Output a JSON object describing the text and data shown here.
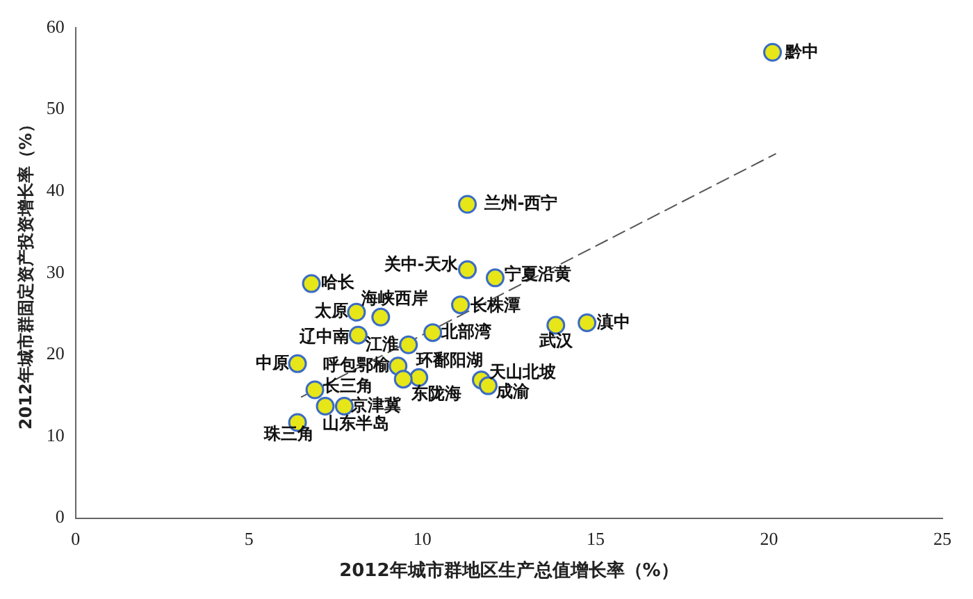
{
  "chart_data": {
    "type": "scatter",
    "xlabel": "2012年城市群地区生产总值增长率（%）",
    "ylabel": "2012年城市群固定资产投资增长率（%）",
    "xlim": [
      0,
      25
    ],
    "xticks": [
      0,
      5,
      10,
      15,
      20,
      25
    ],
    "ylim": [
      0,
      60
    ],
    "yticks": [
      0,
      10,
      20,
      30,
      40,
      50,
      60
    ],
    "grid": false,
    "legend": false,
    "marker": "circle",
    "series": [
      {
        "type": "scatter",
        "color": "#e6e619",
        "x": [
          20.1,
          11.3,
          11.3,
          12.1,
          6.8,
          11.1,
          8.1,
          8.8,
          10.3,
          13.85,
          14.75,
          8.15,
          9.6,
          6.4,
          9.3,
          9.9,
          9.45,
          11.7,
          11.9,
          6.9,
          7.2,
          7.75,
          6.4
        ],
        "values": [
          57.0,
          38.4,
          30.4,
          29.4,
          28.7,
          26.1,
          25.2,
          24.6,
          22.7,
          23.6,
          23.9,
          22.4,
          21.2,
          18.9,
          18.6,
          17.2,
          17.0,
          16.9,
          16.2,
          15.7,
          13.7,
          13.7,
          11.7
        ]
      },
      {
        "type": "line",
        "color": "#555555",
        "line_style": "dashed",
        "marker": "none",
        "x": [
          6.5,
          20.2
        ],
        "values": [
          14.8,
          44.6
        ]
      }
    ],
    "annotations": [
      {
        "text": "黔中",
        "x": 20.1,
        "y": 57.0
      },
      {
        "text": "兰州-西宁",
        "x": 11.3,
        "y": 38.4
      },
      {
        "text": "关中-天水",
        "x": 11.3,
        "y": 30.4
      },
      {
        "text": "宁夏沿黄",
        "x": 12.1,
        "y": 29.4
      },
      {
        "text": "哈长",
        "x": 6.8,
        "y": 28.7
      },
      {
        "text": "长株潭",
        "x": 11.1,
        "y": 26.1
      },
      {
        "text": "太原",
        "x": 8.1,
        "y": 25.2
      },
      {
        "text": "海峡西岸",
        "x": 8.8,
        "y": 24.6
      },
      {
        "text": "北部湾",
        "x": 10.3,
        "y": 22.7
      },
      {
        "text": "武汉",
        "x": 13.85,
        "y": 23.6
      },
      {
        "text": "滇中",
        "x": 14.75,
        "y": 23.9
      },
      {
        "text": "辽中南",
        "x": 8.15,
        "y": 22.4
      },
      {
        "text": "江淮",
        "x": 9.6,
        "y": 21.2
      },
      {
        "text": "中原",
        "x": 6.4,
        "y": 18.9
      },
      {
        "text": "呼包鄂榆",
        "x": 9.3,
        "y": 18.6
      },
      {
        "text": "环鄱阳湖",
        "x": 9.9,
        "y": 17.2
      },
      {
        "text": "东陇海",
        "x": 9.45,
        "y": 17.0
      },
      {
        "text": "天山北坡",
        "x": 11.7,
        "y": 16.9
      },
      {
        "text": "成渝",
        "x": 11.9,
        "y": 16.2
      },
      {
        "text": "长三角",
        "x": 6.9,
        "y": 15.7
      },
      {
        "text": "山东半岛",
        "x": 7.2,
        "y": 13.7
      },
      {
        "text": "京津冀",
        "x": 7.75,
        "y": 13.7
      },
      {
        "text": "珠三角",
        "x": 6.4,
        "y": 11.7
      }
    ]
  }
}
